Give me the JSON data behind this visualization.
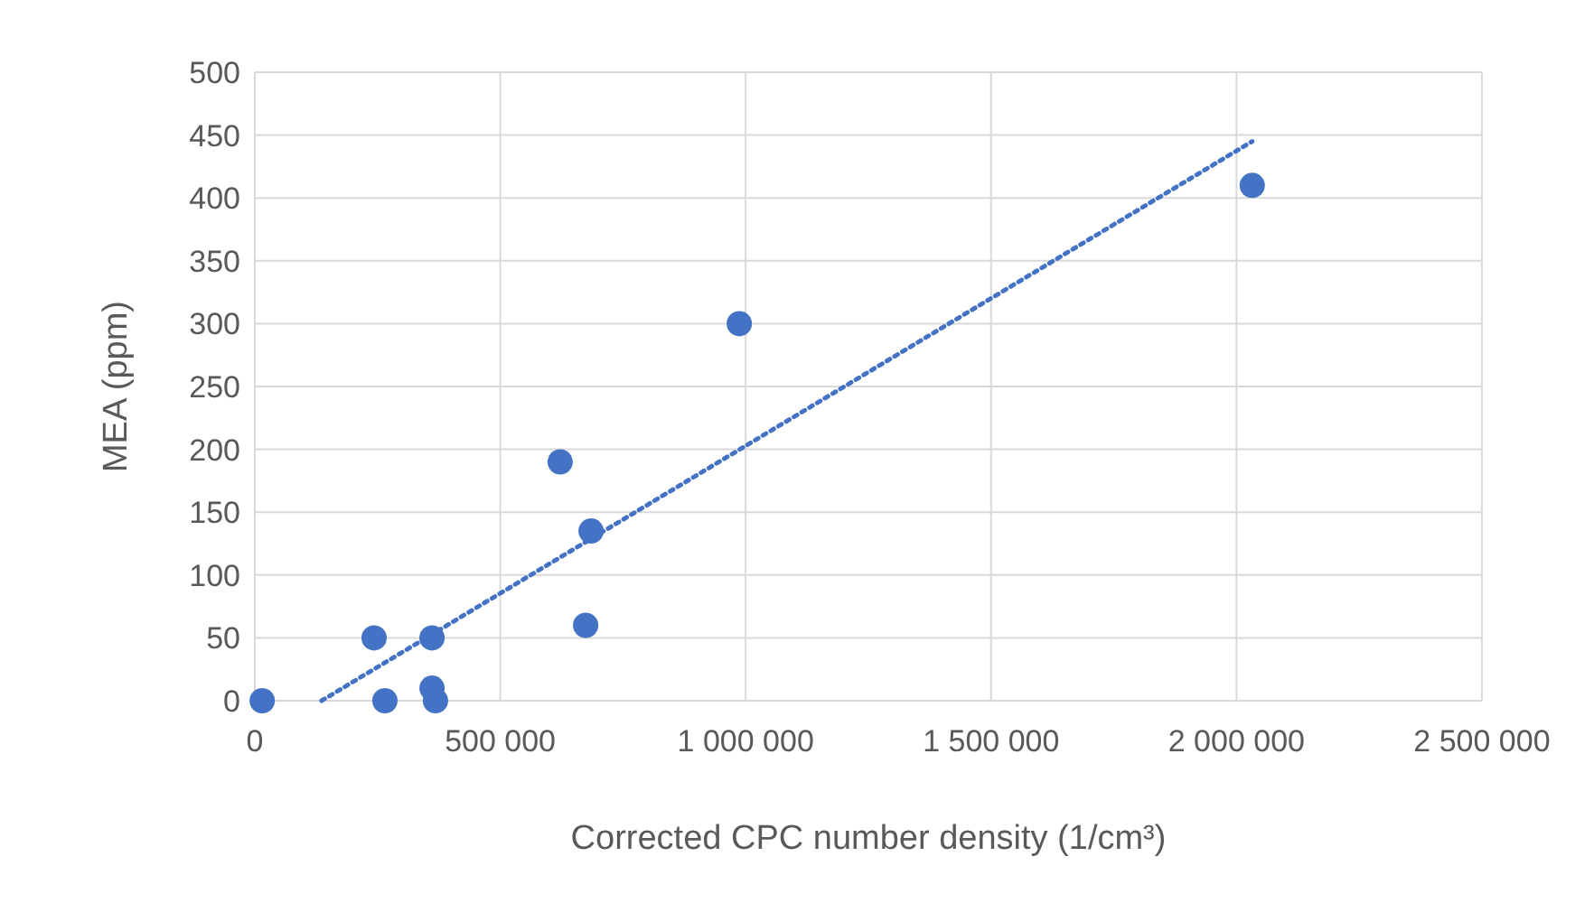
{
  "chart_data": {
    "type": "scatter",
    "xlabel": "Corrected CPC number density (1/cm³)",
    "ylabel": "MEA (ppm)",
    "xlim": [
      0,
      2500000
    ],
    "xticks": [
      0,
      {
        "value": 500000,
        "label": "500 000"
      },
      {
        "value": 1000000,
        "label": "1 000 000"
      },
      {
        "value": 1500000,
        "label": "1 500 000"
      },
      {
        "value": 2000000,
        "label": "2 000 000"
      },
      {
        "value": 2500000,
        "label": "2 500 000"
      }
    ],
    "ylim": [
      0,
      500
    ],
    "yticks": [
      0,
      50,
      100,
      150,
      200,
      250,
      300,
      350,
      400,
      450,
      500
    ],
    "grid": true,
    "series": [
      {
        "type": "scatter",
        "color": "#4472c4",
        "marker": "circle",
        "x": [
          15000,
          243000,
          265000,
          361000,
          361000,
          368000,
          622000,
          674000,
          685000,
          987000,
          2032000
        ],
        "values": [
          0,
          50,
          0,
          50,
          10,
          0,
          190,
          60,
          135,
          300,
          410
        ]
      },
      {
        "type": "line",
        "color": "#4472c4",
        "marker": "none",
        "line_style": "dotted",
        "x": [
          136000,
          2032000
        ],
        "values": [
          0,
          445
        ]
      }
    ]
  }
}
